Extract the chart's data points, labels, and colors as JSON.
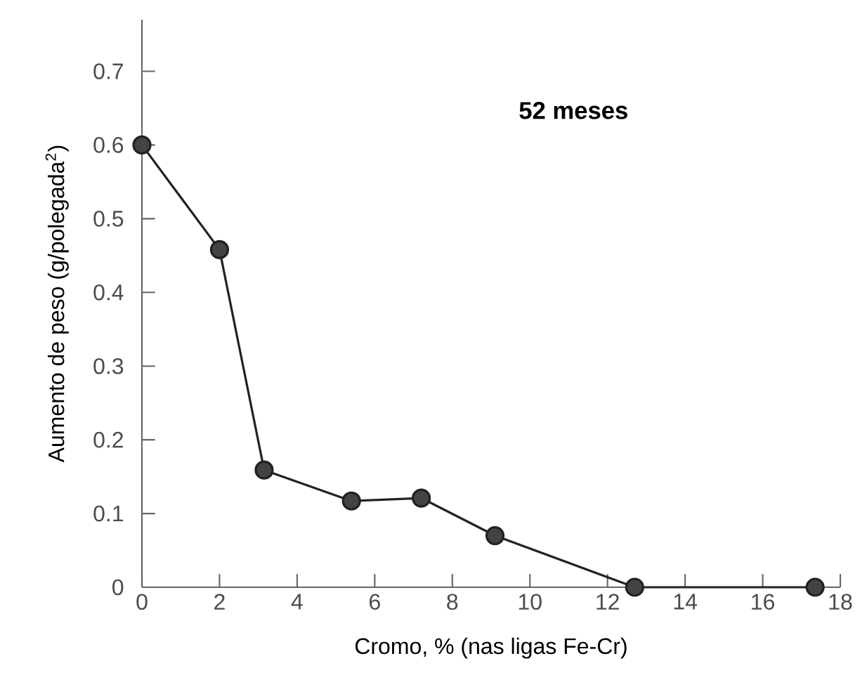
{
  "chart_data": {
    "type": "line",
    "xlabel": "Cromo, % (nas ligas Fe-Cr)",
    "ylabel": "Aumento de peso (g/polegada$^{2}$)",
    "annotations": [
      "**52 meses**"
    ],
    "x": [
      0,
      2,
      3.15,
      5.4,
      7.2,
      9.1,
      12.7,
      17.35
    ],
    "series": [
      {
        "color": "#222222",
        "values": [
          0.6,
          0.458,
          0.159,
          0.117,
          0.121,
          0.07,
          0,
          0
        ]
      }
    ],
    "xlim": [
      0,
      18
    ],
    "xticks": [
      0,
      2,
      4,
      6,
      8,
      10,
      12,
      14,
      16,
      18
    ],
    "ylim": [
      0,
      0.77
    ],
    "yticks": [
      0,
      0.1,
      0.2,
      0.3,
      0.4,
      0.5,
      0.6,
      0.7
    ],
    "marker": "circle",
    "line_style": "solid"
  }
}
